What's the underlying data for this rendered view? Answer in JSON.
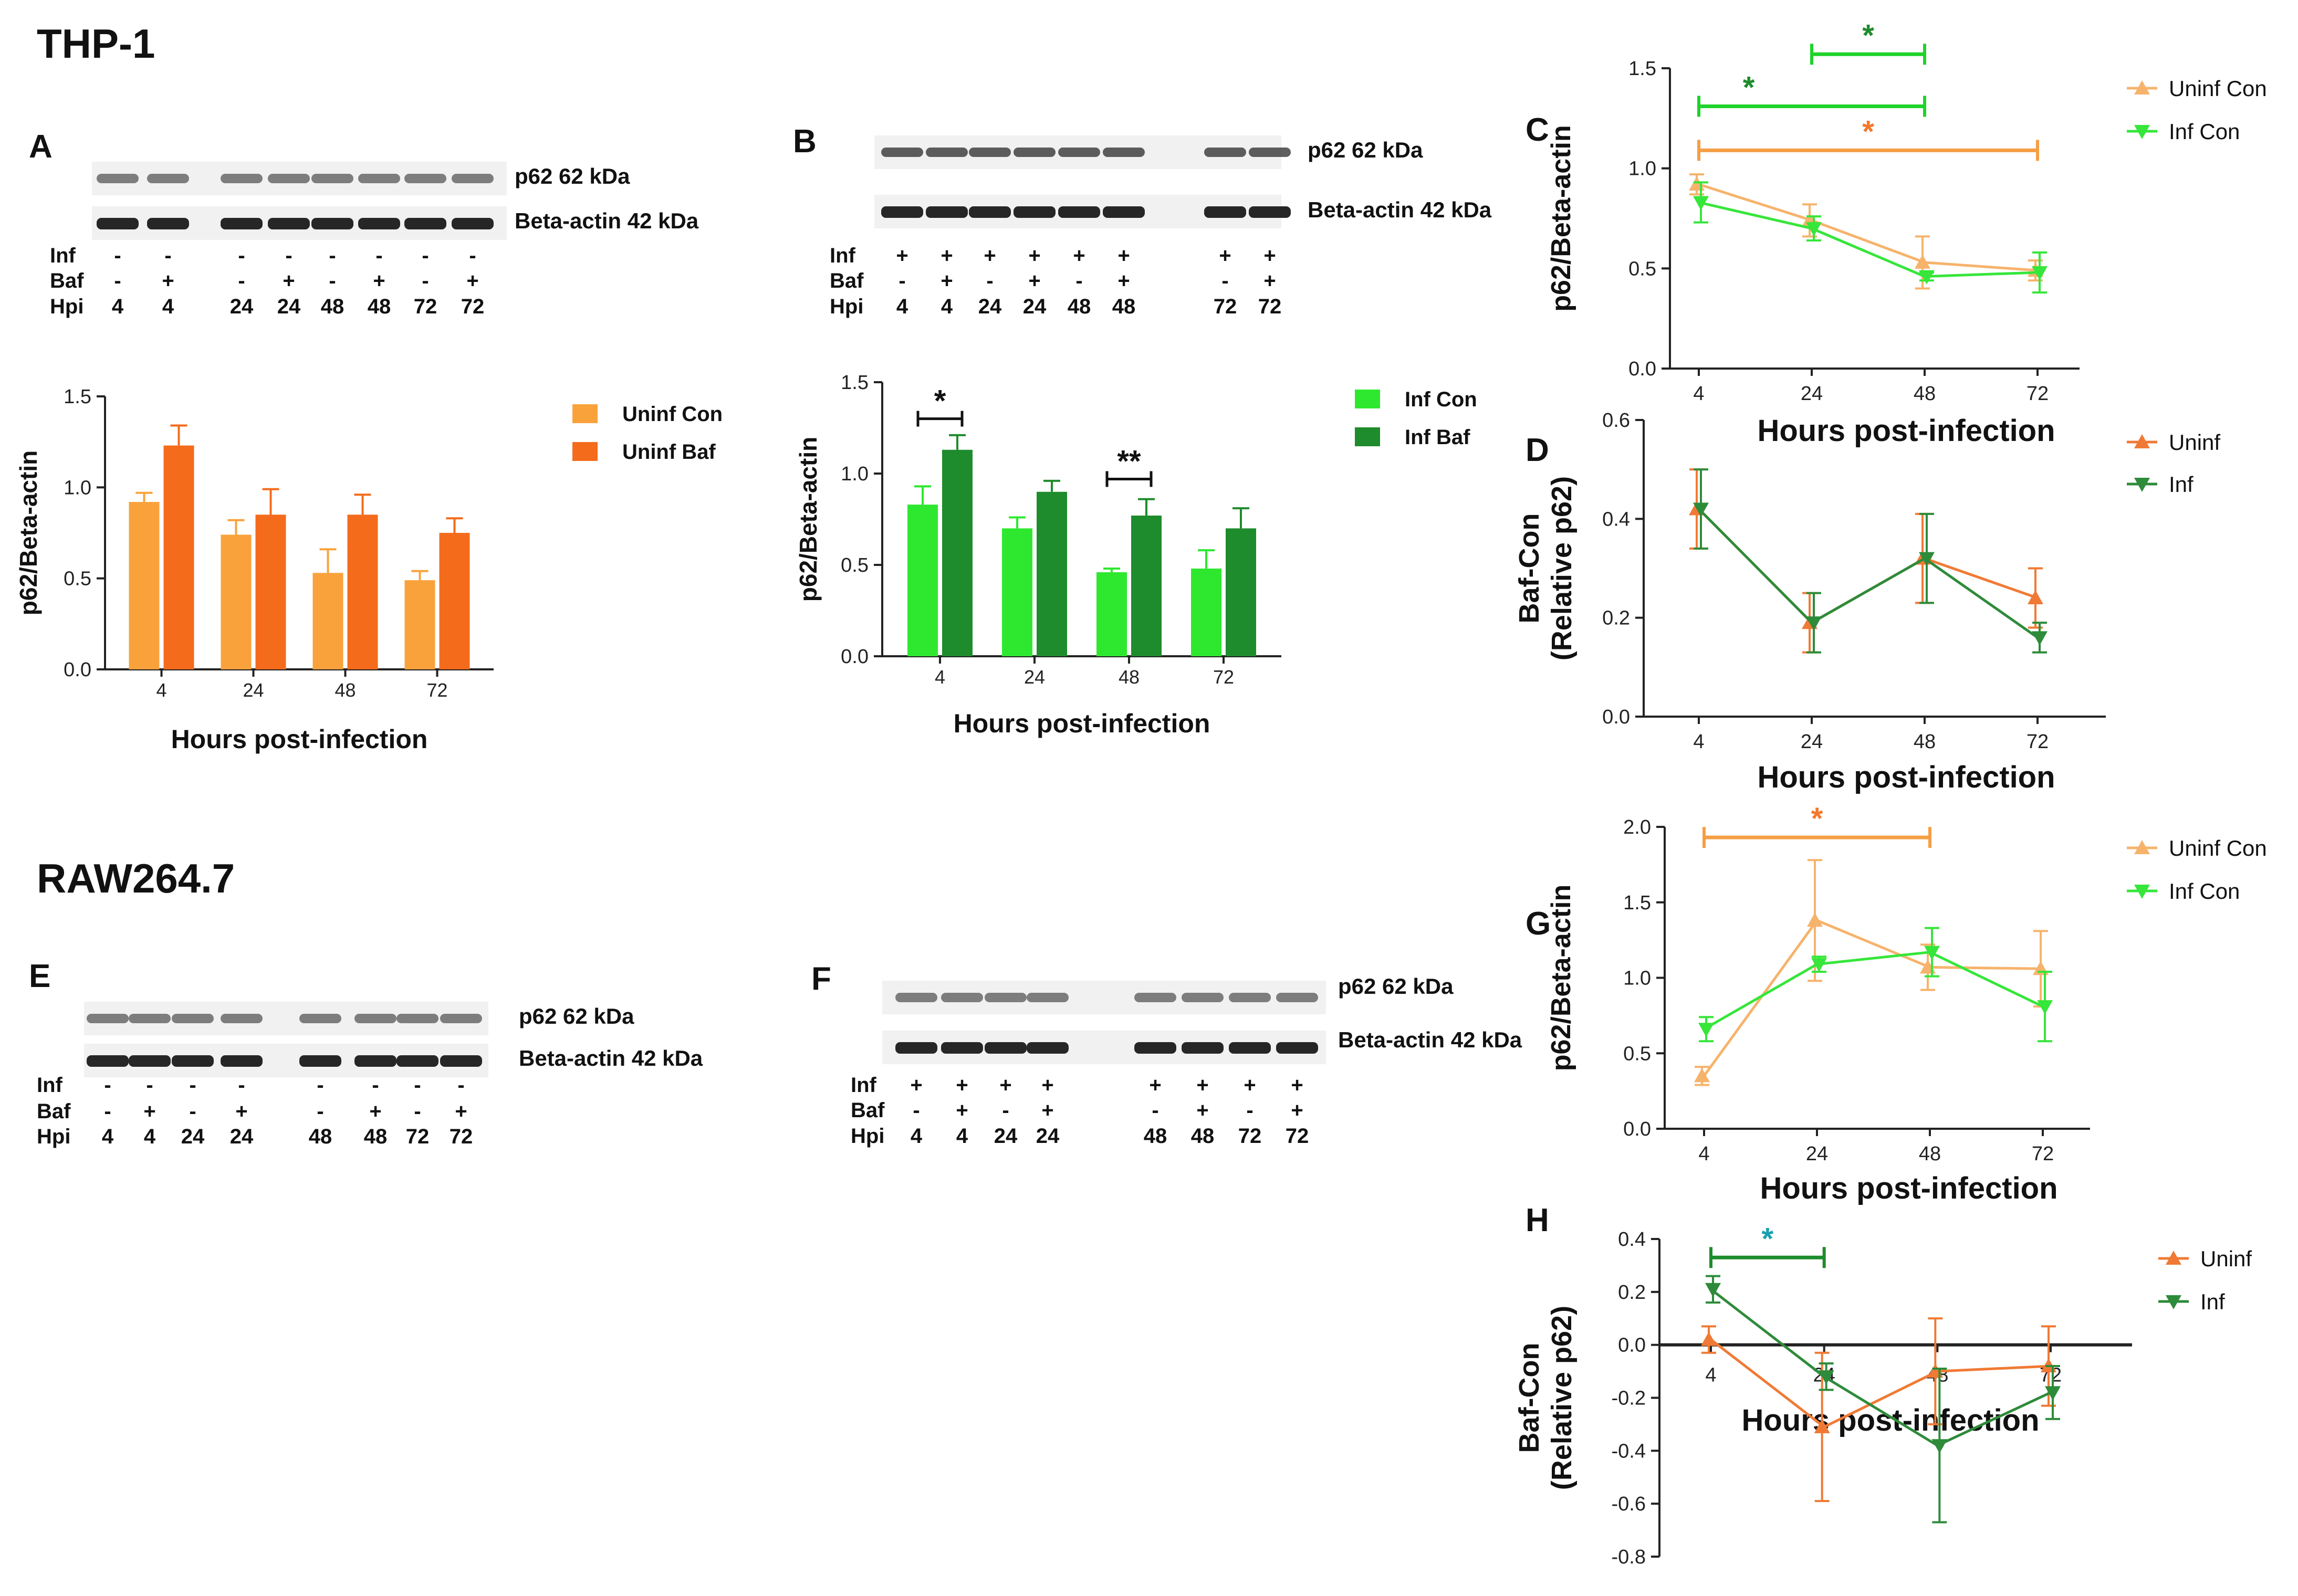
{
  "sections": {
    "thp1": "THP-1",
    "raw": "RAW264.7"
  },
  "colors": {
    "uninf_con": "#F9A23C",
    "uninf_baf": "#F46B1C",
    "inf_con": "#2EE830",
    "inf_baf": "#1E8C2C",
    "c_uninf": "#F6B36C",
    "c_inf": "#36E63A",
    "d_uninf": "#F07A35",
    "d_inf": "#2E8B3A",
    "sig_green": "#1FD32A",
    "sig_orange": "#F59E45",
    "sig_dark": "#1E8C2C",
    "star_teal": "#1AA0B0",
    "star_orange": "#F2782A",
    "axis": "#222222"
  },
  "blots": [
    {
      "panel": "A",
      "band1": "p62 62 kDa",
      "band2": "Beta-actin 42 kDa",
      "row_labels": [
        "Inf",
        "Baf",
        "Hpi"
      ],
      "lanes": [
        {
          "inf": "-",
          "baf": "-",
          "hpi": "4"
        },
        {
          "inf": "-",
          "baf": "+",
          "hpi": "4"
        },
        {
          "inf": "-",
          "baf": "-",
          "hpi": "24"
        },
        {
          "inf": "-",
          "baf": "+",
          "hpi": "24"
        },
        {
          "inf": "-",
          "baf": "-",
          "hpi": "48"
        },
        {
          "inf": "-",
          "baf": "+",
          "hpi": "48"
        },
        {
          "inf": "-",
          "baf": "-",
          "hpi": "72"
        },
        {
          "inf": "-",
          "baf": "+",
          "hpi": "72"
        }
      ]
    },
    {
      "panel": "B",
      "band1": "p62 62 kDa",
      "band2": "Beta-actin 42 kDa",
      "row_labels": [
        "Inf",
        "Baf",
        "Hpi"
      ],
      "lanes": [
        {
          "inf": "+",
          "baf": "-",
          "hpi": "4"
        },
        {
          "inf": "+",
          "baf": "+",
          "hpi": "4"
        },
        {
          "inf": "+",
          "baf": "-",
          "hpi": "24"
        },
        {
          "inf": "+",
          "baf": "+",
          "hpi": "24"
        },
        {
          "inf": "+",
          "baf": "-",
          "hpi": "48"
        },
        {
          "inf": "+",
          "baf": "+",
          "hpi": "48"
        },
        {
          "inf": "+",
          "baf": "-",
          "hpi": "72"
        },
        {
          "inf": "+",
          "baf": "+",
          "hpi": "72"
        }
      ]
    },
    {
      "panel": "E",
      "band1": "p62 62 kDa",
      "band2": "Beta-actin 42 kDa",
      "row_labels": [
        "Inf",
        "Baf",
        "Hpi"
      ],
      "lanes": [
        {
          "inf": "-",
          "baf": "-",
          "hpi": "4"
        },
        {
          "inf": "-",
          "baf": "+",
          "hpi": "4"
        },
        {
          "inf": "-",
          "baf": "-",
          "hpi": "24"
        },
        {
          "inf": "-",
          "baf": "+",
          "hpi": "24"
        },
        {
          "inf": "-",
          "baf": "-",
          "hpi": "48"
        },
        {
          "inf": "-",
          "baf": "+",
          "hpi": "48"
        },
        {
          "inf": "-",
          "baf": "-",
          "hpi": "72"
        },
        {
          "inf": "-",
          "baf": "+",
          "hpi": "72"
        }
      ]
    },
    {
      "panel": "F",
      "band1": "p62 62 kDa",
      "band2": "Beta-actin 42 kDa",
      "row_labels": [
        "Inf",
        "Baf",
        "Hpi"
      ],
      "lanes": [
        {
          "inf": "+",
          "baf": "-",
          "hpi": "4"
        },
        {
          "inf": "+",
          "baf": "+",
          "hpi": "4"
        },
        {
          "inf": "+",
          "baf": "-",
          "hpi": "24"
        },
        {
          "inf": "+",
          "baf": "+",
          "hpi": "24"
        },
        {
          "inf": "+",
          "baf": "-",
          "hpi": "48"
        },
        {
          "inf": "+",
          "baf": "+",
          "hpi": "48"
        },
        {
          "inf": "+",
          "baf": "-",
          "hpi": "72"
        },
        {
          "inf": "+",
          "baf": "+",
          "hpi": "72"
        }
      ]
    }
  ],
  "chart_data": [
    {
      "panel": "A",
      "type": "bar",
      "categories": [
        "4",
        "24",
        "48",
        "72"
      ],
      "xlabel": "Hours post-infection",
      "ylabel": "p62/Beta-actin",
      "ylim": [
        0,
        1.5
      ],
      "yticks": [
        "0.0",
        "0.5",
        "1.0",
        "1.5"
      ],
      "series": [
        {
          "name": "Uninf Con",
          "values": [
            0.92,
            0.74,
            0.53,
            0.49
          ],
          "errors": [
            0.05,
            0.08,
            0.13,
            0.05
          ]
        },
        {
          "name": "Uninf Baf",
          "values": [
            1.23,
            0.85,
            0.85,
            0.75
          ],
          "errors": [
            0.11,
            0.14,
            0.11,
            0.08
          ]
        }
      ],
      "annotations": []
    },
    {
      "panel": "B",
      "type": "bar",
      "categories": [
        "4",
        "24",
        "48",
        "72"
      ],
      "xlabel": "Hours post-infection",
      "ylabel": "p62/Beta-actin",
      "ylim": [
        0,
        1.5
      ],
      "yticks": [
        "0.0",
        "0.5",
        "1.0",
        "1.5"
      ],
      "series": [
        {
          "name": "Inf Con",
          "values": [
            0.83,
            0.7,
            0.46,
            0.48
          ],
          "errors": [
            0.1,
            0.06,
            0.02,
            0.1
          ]
        },
        {
          "name": "Inf Baf",
          "values": [
            1.13,
            0.9,
            0.77,
            0.7
          ],
          "errors": [
            0.08,
            0.06,
            0.09,
            0.11
          ]
        }
      ],
      "annotations": [
        {
          "label": "*",
          "category": "4",
          "y": 1.3
        },
        {
          "label": "**",
          "category": "48",
          "y": 0.97
        }
      ]
    },
    {
      "panel": "C",
      "type": "line",
      "x": [
        "4",
        "24",
        "48",
        "72"
      ],
      "xlabel": "Hours post-infection",
      "ylabel": "p62/Beta-actin",
      "ylim": [
        0,
        1.5
      ],
      "yticks": [
        "0.0",
        "0.5",
        "1.0",
        "1.5"
      ],
      "series": [
        {
          "name": "Uninf Con",
          "marker": "up",
          "values": [
            0.92,
            0.74,
            0.53,
            0.49
          ],
          "errors": [
            0.05,
            0.08,
            0.13,
            0.05
          ]
        },
        {
          "name": "Inf Con",
          "marker": "down",
          "values": [
            0.83,
            0.7,
            0.46,
            0.48
          ],
          "errors": [
            0.1,
            0.06,
            0.02,
            0.1
          ]
        }
      ],
      "significance": [
        {
          "label": "*",
          "from": "24",
          "to": "48",
          "y": 1.57,
          "series": "Inf Con"
        },
        {
          "label": "*",
          "from": "4",
          "to": "48",
          "y": 1.31,
          "series": "Inf Con"
        },
        {
          "label": "*",
          "from": "4",
          "to": "72",
          "y": 1.09,
          "series": "Uninf Con"
        }
      ]
    },
    {
      "panel": "D",
      "type": "line",
      "x": [
        "4",
        "24",
        "48",
        "72"
      ],
      "xlabel": "Hours post-infection",
      "ylabel": "Baf-Con (Relative p62)",
      "ylim": [
        0,
        0.6
      ],
      "yticks": [
        "0.0",
        "0.2",
        "0.4",
        "0.6"
      ],
      "series": [
        {
          "name": "Uninf",
          "marker": "up",
          "values": [
            0.42,
            0.19,
            0.32,
            0.24
          ],
          "errors": [
            0.08,
            0.06,
            0.09,
            0.06
          ]
        },
        {
          "name": "Inf",
          "marker": "down",
          "values": [
            0.42,
            0.19,
            0.32,
            0.16
          ],
          "errors": [
            0.08,
            0.06,
            0.09,
            0.03
          ]
        }
      ],
      "significance": []
    },
    {
      "panel": "G",
      "type": "line",
      "x": [
        "4",
        "24",
        "48",
        "72"
      ],
      "xlabel": "Hours post-infection",
      "ylabel": "p62/Beta-actin",
      "ylim": [
        0,
        2.0
      ],
      "yticks": [
        "0.0",
        "0.5",
        "1.0",
        "1.5",
        "2.0"
      ],
      "series": [
        {
          "name": "Uninf Con",
          "marker": "up",
          "values": [
            0.35,
            1.38,
            1.07,
            1.06
          ],
          "errors": [
            0.06,
            0.4,
            0.15,
            0.25
          ]
        },
        {
          "name": "Inf Con",
          "marker": "down",
          "values": [
            0.66,
            1.09,
            1.17,
            0.81
          ],
          "errors": [
            0.08,
            0.05,
            0.16,
            0.23
          ]
        }
      ],
      "significance": [
        {
          "label": "*",
          "from": "4",
          "to": "48",
          "y": 1.93,
          "series": "Uninf Con"
        }
      ]
    },
    {
      "panel": "H",
      "type": "line",
      "x": [
        "4",
        "24",
        "48",
        "72"
      ],
      "xlabel": "Hours post-infection",
      "ylabel": "Baf-Con (Relative p62)",
      "ylim": [
        -0.8,
        0.4
      ],
      "yticks": [
        "-0.8",
        "-0.6",
        "-0.4",
        "-0.2",
        "0.0",
        "0.2",
        "0.4"
      ],
      "series": [
        {
          "name": "Uninf",
          "marker": "up",
          "values": [
            0.02,
            -0.31,
            -0.1,
            -0.08
          ],
          "errors": [
            0.05,
            0.28,
            0.2,
            0.15
          ]
        },
        {
          "name": "Inf",
          "marker": "down",
          "values": [
            0.21,
            -0.12,
            -0.38,
            -0.18
          ],
          "errors": [
            0.05,
            0.05,
            0.29,
            0.1
          ]
        }
      ],
      "significance": [
        {
          "label": "*",
          "from": "4",
          "to": "24",
          "y": 0.33,
          "series": "Inf"
        }
      ]
    }
  ]
}
